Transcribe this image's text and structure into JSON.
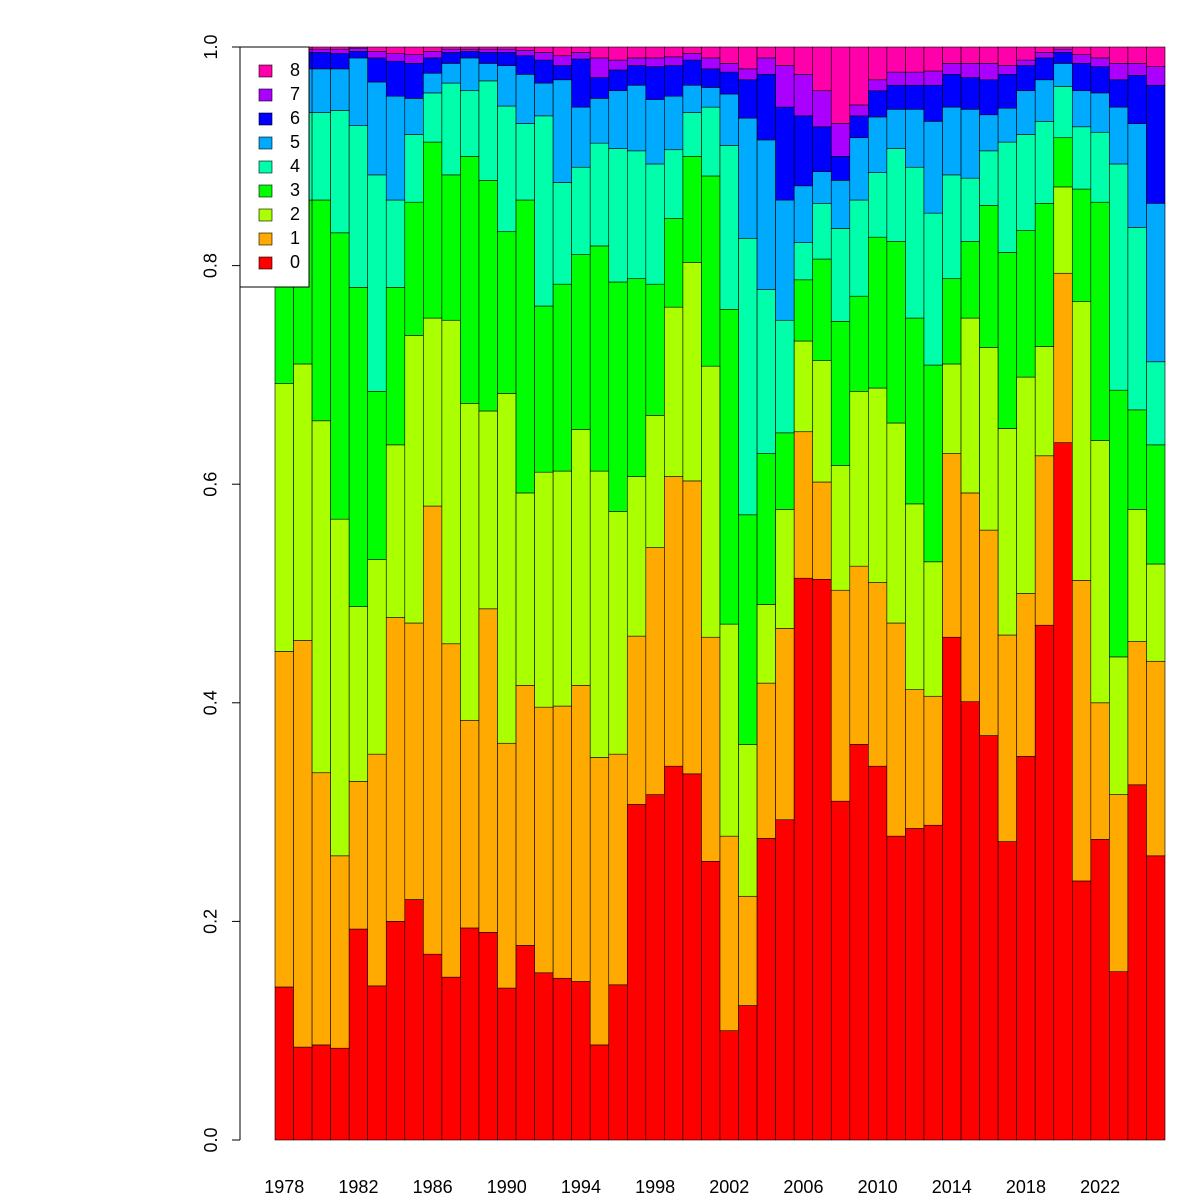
{
  "chart_data": {
    "type": "stacked-bar",
    "categories": [
      "1978",
      null,
      null,
      null,
      "1982",
      null,
      null,
      null,
      "1986",
      null,
      null,
      null,
      "1990",
      null,
      null,
      null,
      "1994",
      null,
      null,
      null,
      "1998",
      null,
      null,
      null,
      "2002",
      null,
      null,
      null,
      "2006",
      null,
      null,
      null,
      "2010",
      null,
      null,
      null,
      "2014",
      null,
      null,
      null,
      "2018",
      null,
      null,
      null,
      "2022",
      null,
      null,
      null
    ],
    "series": [
      {
        "name": "0",
        "color": "#ff0000",
        "values": [
          0.14,
          0.085,
          0.087,
          0.084,
          0.193,
          0.141,
          0.2,
          0.22,
          0.17,
          0.149,
          0.194,
          0.19,
          0.139,
          0.178,
          0.153,
          0.148,
          0.145,
          0.087,
          0.142,
          0.307,
          0.316,
          0.342,
          0.335,
          0.255,
          0.1,
          0.123,
          0.276,
          0.293,
          0.514,
          0.513,
          0.31,
          0.362,
          0.342,
          0.278,
          0.285,
          0.288,
          0.46,
          0.401,
          0.37,
          0.273,
          0.351,
          0.471,
          0.638,
          0.237,
          0.275,
          0.154,
          0.325,
          0.26
        ]
      },
      {
        "name": "1",
        "color": "#ffaa00",
        "values": [
          0.307,
          0.372,
          0.249,
          0.176,
          0.135,
          0.212,
          0.278,
          0.253,
          0.41,
          0.305,
          0.19,
          0.296,
          0.224,
          0.238,
          0.243,
          0.249,
          0.271,
          0.263,
          0.211,
          0.154,
          0.226,
          0.265,
          0.268,
          0.205,
          0.178,
          0.1,
          0.142,
          0.175,
          0.134,
          0.089,
          0.193,
          0.163,
          0.168,
          0.195,
          0.127,
          0.118,
          0.168,
          0.191,
          0.188,
          0.189,
          0.149,
          0.155,
          0.155,
          0.275,
          0.125,
          0.162,
          0.131,
          0.178
        ]
      },
      {
        "name": "2",
        "color": "#aaff00",
        "values": [
          0.245,
          0.253,
          0.322,
          0.308,
          0.16,
          0.178,
          0.158,
          0.263,
          0.172,
          0.296,
          0.29,
          0.181,
          0.32,
          0.176,
          0.215,
          0.215,
          0.234,
          0.262,
          0.222,
          0.146,
          0.121,
          0.155,
          0.2,
          0.248,
          0.194,
          0.139,
          0.072,
          0.109,
          0.083,
          0.111,
          0.114,
          0.16,
          0.178,
          0.183,
          0.17,
          0.123,
          0.082,
          0.16,
          0.167,
          0.189,
          0.198,
          0.1,
          0.079,
          0.255,
          0.24,
          0.126,
          0.121,
          0.089
        ]
      },
      {
        "name": "3",
        "color": "#00ff00",
        "values": [
          0.168,
          0.15,
          0.202,
          0.262,
          0.292,
          0.154,
          0.144,
          0.122,
          0.161,
          0.133,
          0.226,
          0.211,
          0.148,
          0.268,
          0.152,
          0.171,
          0.16,
          0.206,
          0.21,
          0.181,
          0.12,
          0.081,
          0.097,
          0.174,
          0.288,
          0.21,
          0.138,
          0.07,
          0.056,
          0.093,
          0.132,
          0.087,
          0.138,
          0.166,
          0.17,
          0.18,
          0.078,
          0.07,
          0.13,
          0.161,
          0.134,
          0.131,
          0.045,
          0.103,
          0.218,
          0.244,
          0.091,
          0.109
        ]
      },
      {
        "name": "4",
        "color": "#00ffaa",
        "values": [
          0.08,
          0.08,
          0.08,
          0.112,
          0.148,
          0.198,
          0.08,
          0.062,
          0.045,
          0.084,
          0.06,
          0.091,
          0.115,
          0.07,
          0.174,
          0.093,
          0.08,
          0.094,
          0.122,
          0.117,
          0.11,
          0.063,
          0.04,
          0.063,
          0.15,
          0.253,
          0.15,
          0.103,
          0.034,
          0.051,
          0.085,
          0.088,
          0.059,
          0.085,
          0.138,
          0.139,
          0.095,
          0.058,
          0.05,
          0.101,
          0.088,
          0.075,
          0.047,
          0.057,
          0.064,
          0.207,
          0.167,
          0.076
        ]
      },
      {
        "name": "5",
        "color": "#00aaff",
        "values": [
          0.04,
          0.04,
          0.04,
          0.038,
          0.062,
          0.085,
          0.095,
          0.033,
          0.018,
          0.018,
          0.03,
          0.016,
          0.037,
          0.045,
          0.03,
          0.094,
          0.055,
          0.041,
          0.053,
          0.06,
          0.059,
          0.049,
          0.025,
          0.018,
          0.047,
          0.11,
          0.137,
          0.11,
          0.052,
          0.029,
          0.044,
          0.057,
          0.051,
          0.036,
          0.053,
          0.084,
          0.062,
          0.063,
          0.033,
          0.031,
          0.04,
          0.038,
          0.021,
          0.033,
          0.036,
          0.052,
          0.095,
          0.145
        ]
      },
      {
        "name": "6",
        "color": "#0000ff",
        "values": [
          0.015,
          0.015,
          0.015,
          0.014,
          0.006,
          0.022,
          0.032,
          0.032,
          0.014,
          0.01,
          0.006,
          0.01,
          0.012,
          0.017,
          0.021,
          0.013,
          0.044,
          0.019,
          0.019,
          0.018,
          0.03,
          0.028,
          0.023,
          0.017,
          0.02,
          0.035,
          0.06,
          0.085,
          0.064,
          0.041,
          0.022,
          0.02,
          0.024,
          0.022,
          0.022,
          0.033,
          0.03,
          0.029,
          0.032,
          0.031,
          0.023,
          0.02,
          0.01,
          0.025,
          0.024,
          0.025,
          0.044,
          0.108
        ]
      },
      {
        "name": "7",
        "color": "#aa00ff",
        "values": [
          0.003,
          0.003,
          0.003,
          0.004,
          0.003,
          0.006,
          0.007,
          0.008,
          0.006,
          0.003,
          0.002,
          0.003,
          0.003,
          0.005,
          0.007,
          0.009,
          0.006,
          0.018,
          0.009,
          0.007,
          0.008,
          0.008,
          0.006,
          0.01,
          0.008,
          0.01,
          0.015,
          0.038,
          0.038,
          0.033,
          0.03,
          0.01,
          0.01,
          0.012,
          0.012,
          0.013,
          0.01,
          0.013,
          0.015,
          0.008,
          0.005,
          0.005,
          0.003,
          0.008,
          0.008,
          0.015,
          0.011,
          0.017
        ]
      },
      {
        "name": "8",
        "color": "#ff00aa",
        "values": [
          0.002,
          0.002,
          0.002,
          0.002,
          0.001,
          0.004,
          0.006,
          0.007,
          0.004,
          0.002,
          0.002,
          0.002,
          0.002,
          0.003,
          0.005,
          0.008,
          0.005,
          0.01,
          0.012,
          0.01,
          0.01,
          0.009,
          0.006,
          0.01,
          0.015,
          0.02,
          0.01,
          0.017,
          0.025,
          0.04,
          0.07,
          0.053,
          0.03,
          0.023,
          0.023,
          0.022,
          0.015,
          0.015,
          0.015,
          0.017,
          0.012,
          0.005,
          0.002,
          0.007,
          0.01,
          0.015,
          0.015,
          0.018
        ]
      }
    ],
    "ylim": [
      0,
      1
    ],
    "yticks": [
      {
        "value": 0,
        "label": "0.0"
      },
      0.2,
      0.4,
      0.6,
      0.8,
      {
        "value": 1,
        "label": "1.0"
      }
    ],
    "legend": "top-left"
  }
}
